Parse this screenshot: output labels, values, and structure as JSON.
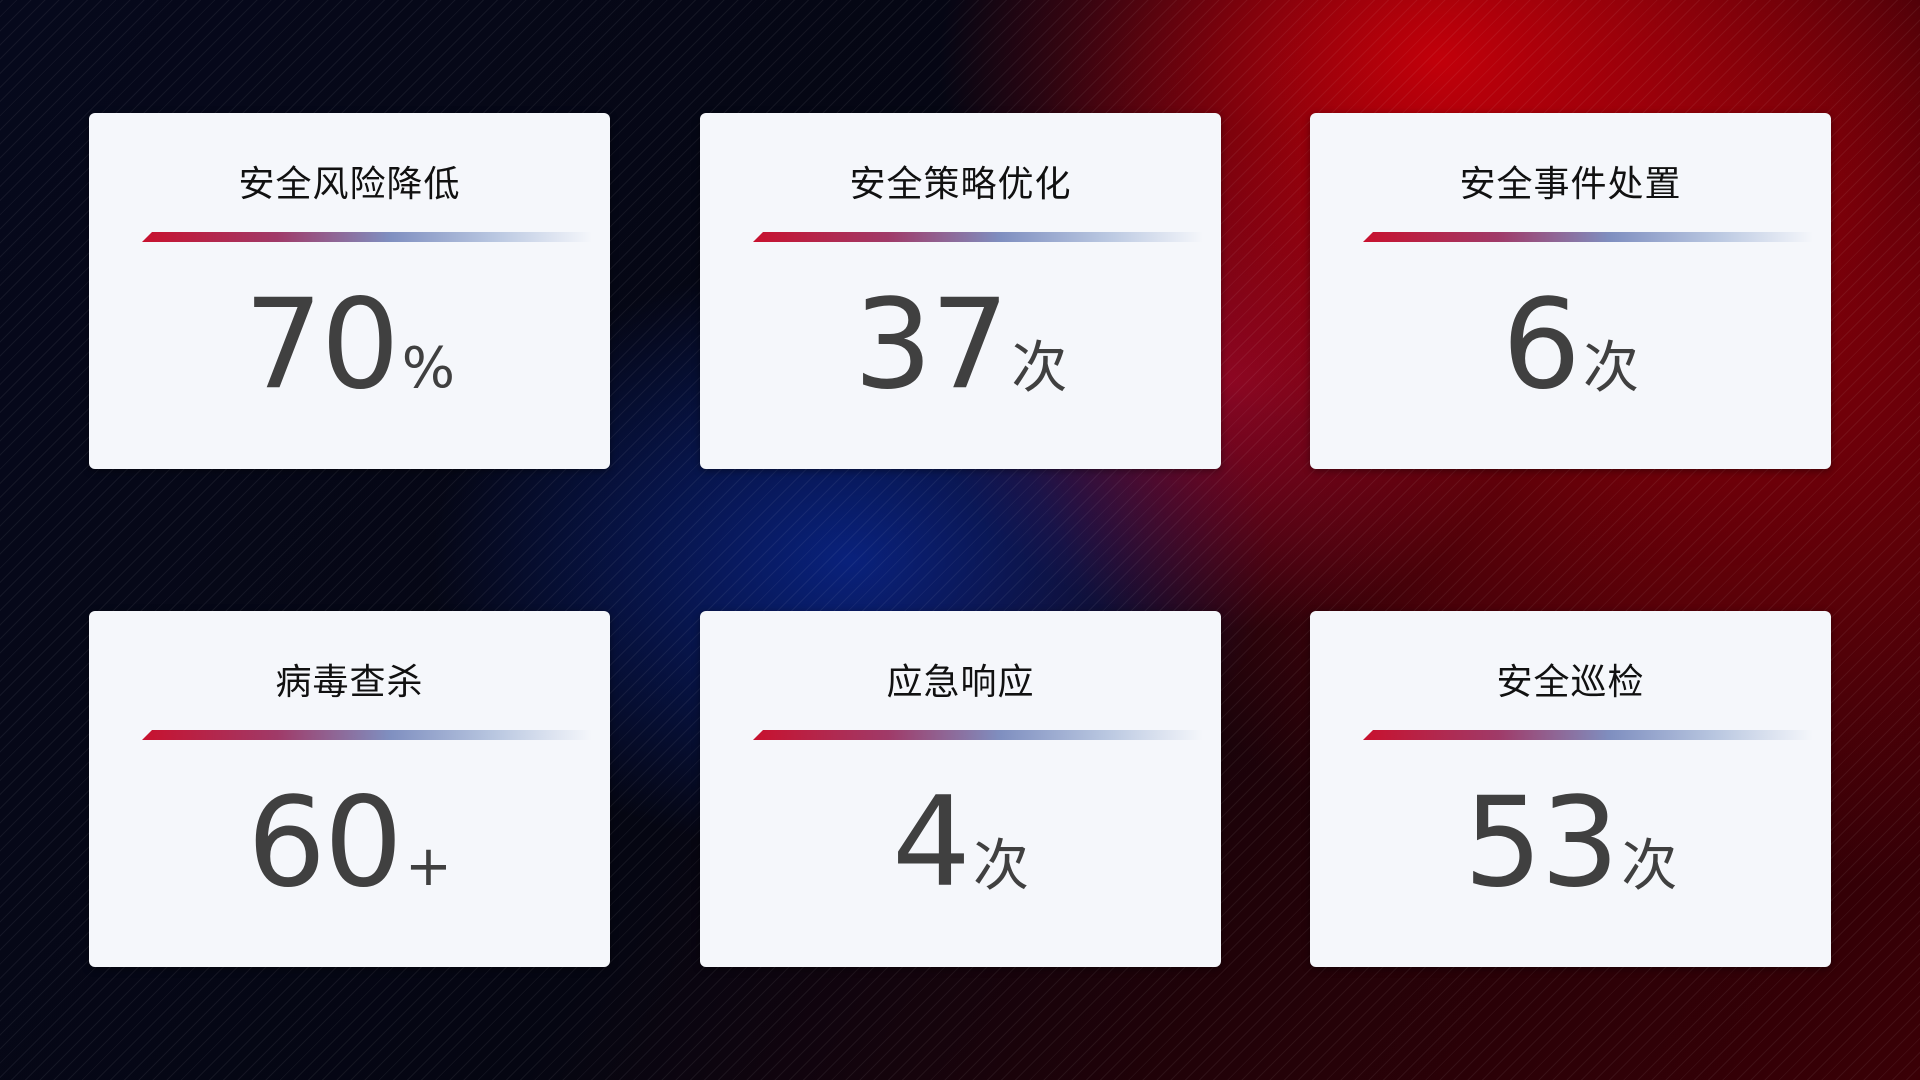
{
  "cards": [
    {
      "title": "安全风险降低",
      "value": "70",
      "unit": "%"
    },
    {
      "title": "安全策略优化",
      "value": "37",
      "unit": "次"
    },
    {
      "title": "安全事件处置",
      "value": "6",
      "unit": "次"
    },
    {
      "title": "病毒查杀",
      "value": "60",
      "unit": "+"
    },
    {
      "title": "应急响应",
      "value": "4",
      "unit": "次"
    },
    {
      "title": "安全巡检",
      "value": "53",
      "unit": "次"
    }
  ],
  "colors": {
    "accent_red": "#c8112e",
    "accent_blue": "#7f8fc0",
    "card_bg": "#f5f7fb",
    "value_text": "#404040"
  }
}
